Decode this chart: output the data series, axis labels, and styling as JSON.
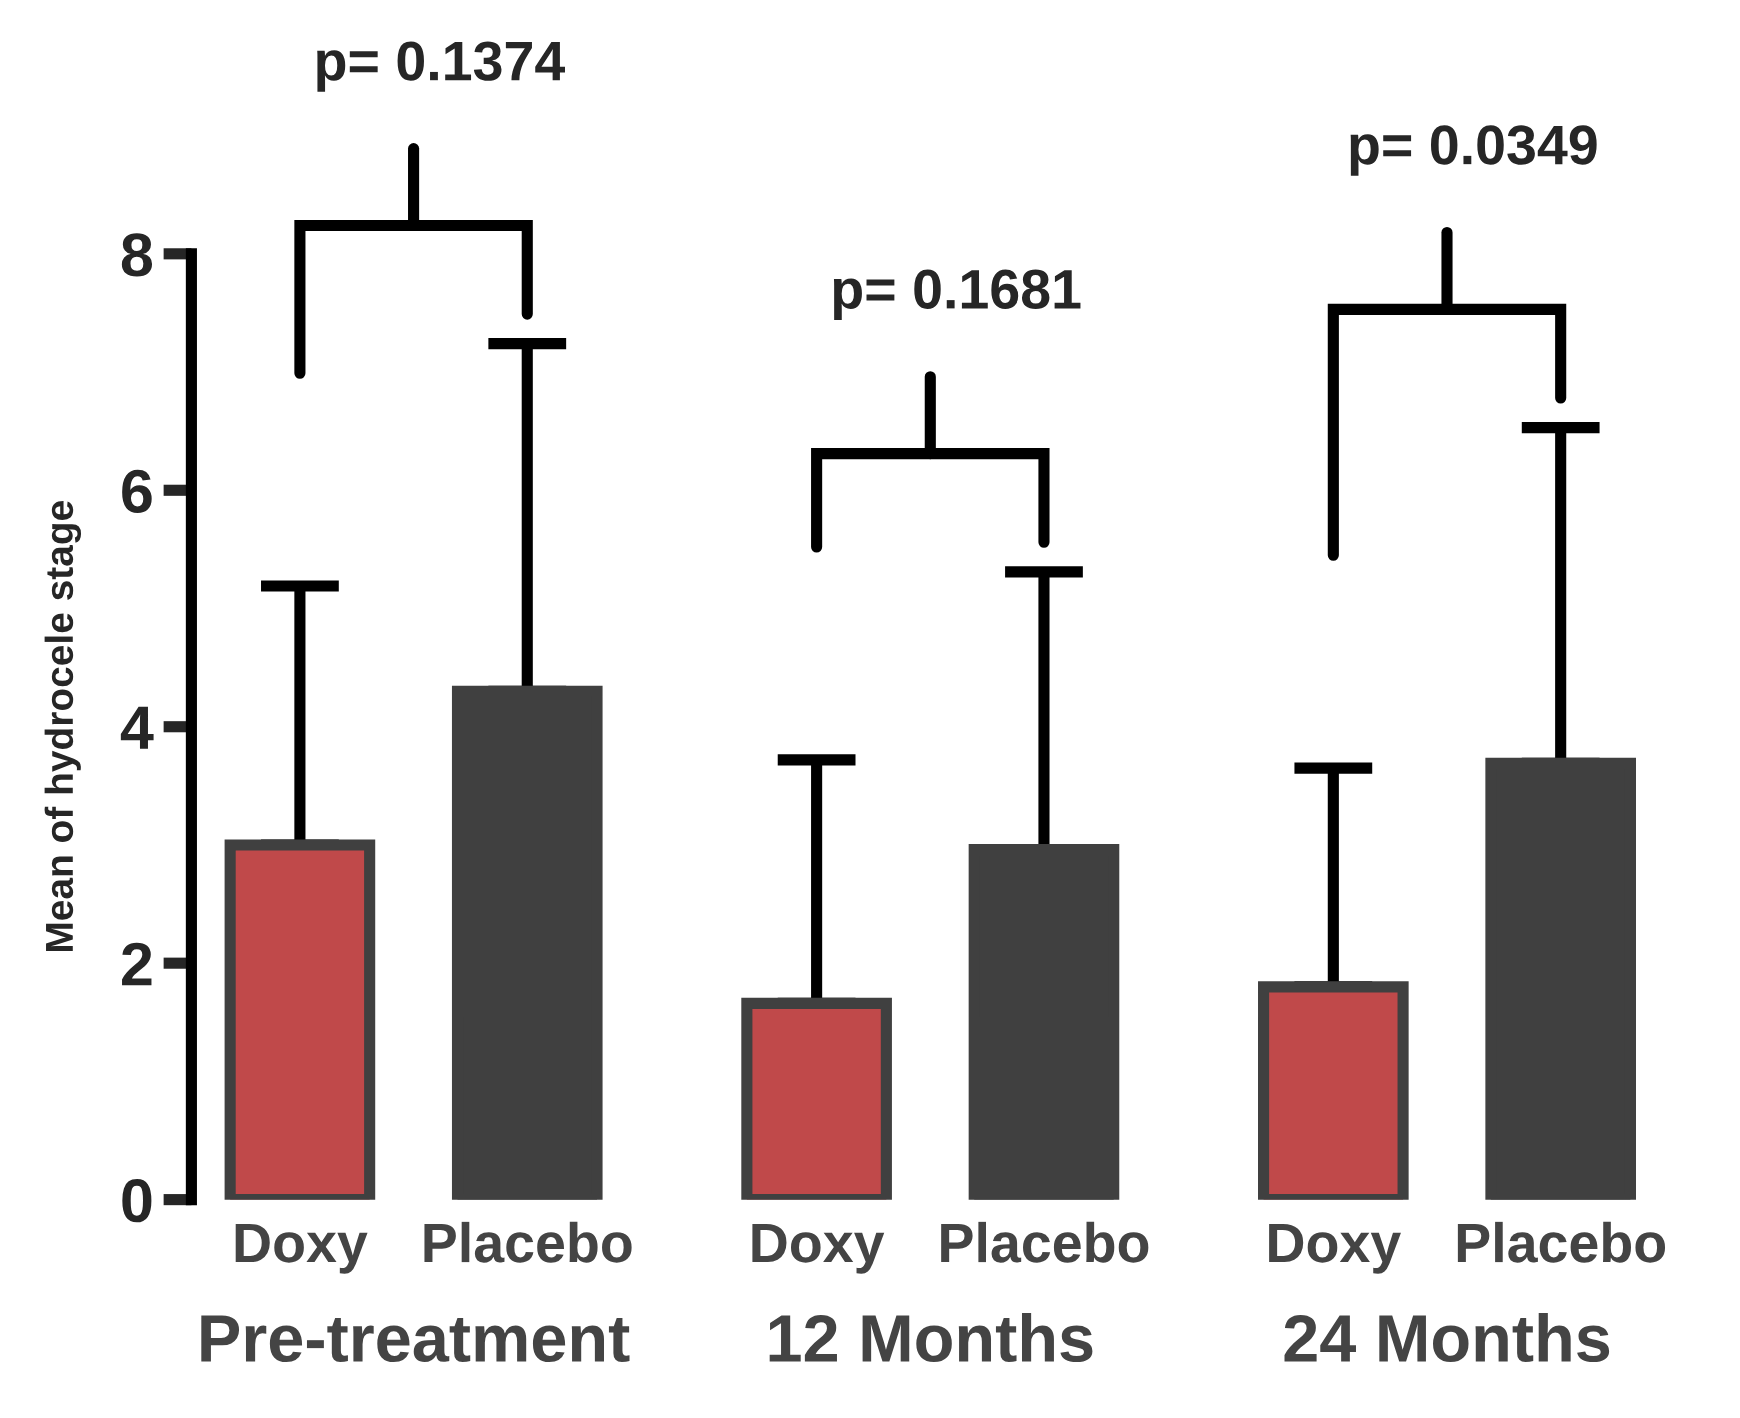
{
  "chart_data": {
    "type": "bar",
    "ylabel": "Mean of hydrocele stage",
    "categories": [
      "Pre-treatment",
      "12 Months",
      "24 Months"
    ],
    "series": [
      {
        "name": "Doxy",
        "color": "#c0494a",
        "values": [
          3.0,
          1.66,
          1.8
        ],
        "errors": [
          [
            3.0,
            5.19
          ],
          [
            1.66,
            3.72
          ],
          [
            1.8,
            3.65
          ]
        ]
      },
      {
        "name": "Placebo",
        "color": "#404040",
        "values": [
          4.3,
          2.96,
          3.69
        ],
        "errors": [
          [
            4.3,
            7.24
          ],
          [
            2.96,
            5.31
          ],
          [
            3.69,
            6.53
          ]
        ]
      }
    ],
    "ylim": [
      0,
      8
    ],
    "yticks": [
      0,
      2,
      4,
      6,
      8
    ],
    "grid": false,
    "legend": false,
    "annotations": [
      "p= 0.1374",
      "p= 0.1681",
      "p= 0.0349"
    ]
  }
}
